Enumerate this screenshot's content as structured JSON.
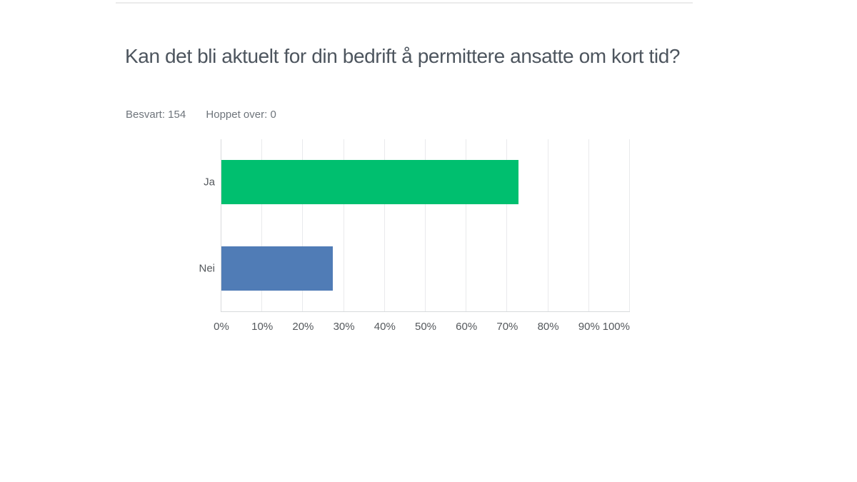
{
  "header": {
    "title": "Kan det bli aktuelt for din bedrift å permittere ansatte om kort tid?",
    "answered": "Besvart: 154",
    "skipped": "Hoppet over: 0"
  },
  "colors": {
    "bar_ja": "#00bf6f",
    "bar_nei": "#507cb6",
    "title_text": "#4d555e",
    "muted_text": "#6e747b",
    "axis_line": "#d8dadc",
    "gridline": "#e9eaec"
  },
  "chart_data": {
    "type": "bar",
    "orientation": "horizontal",
    "title": "Kan det bli aktuelt for din bedrift å permittere ansatte om kort tid?",
    "categories": [
      "Ja",
      "Nei"
    ],
    "values": [
      72.73,
      27.27
    ],
    "bar_colors": [
      "#00bf6f",
      "#507cb6"
    ],
    "answered": 154,
    "skipped": 0,
    "xlabel": "",
    "ylabel": "",
    "xlim": [
      0,
      100
    ],
    "x_ticks": [
      "0%",
      "10%",
      "20%",
      "30%",
      "40%",
      "50%",
      "60%",
      "70%",
      "80%",
      "90%",
      "100%"
    ],
    "grid": "vertical",
    "legend": "none"
  }
}
